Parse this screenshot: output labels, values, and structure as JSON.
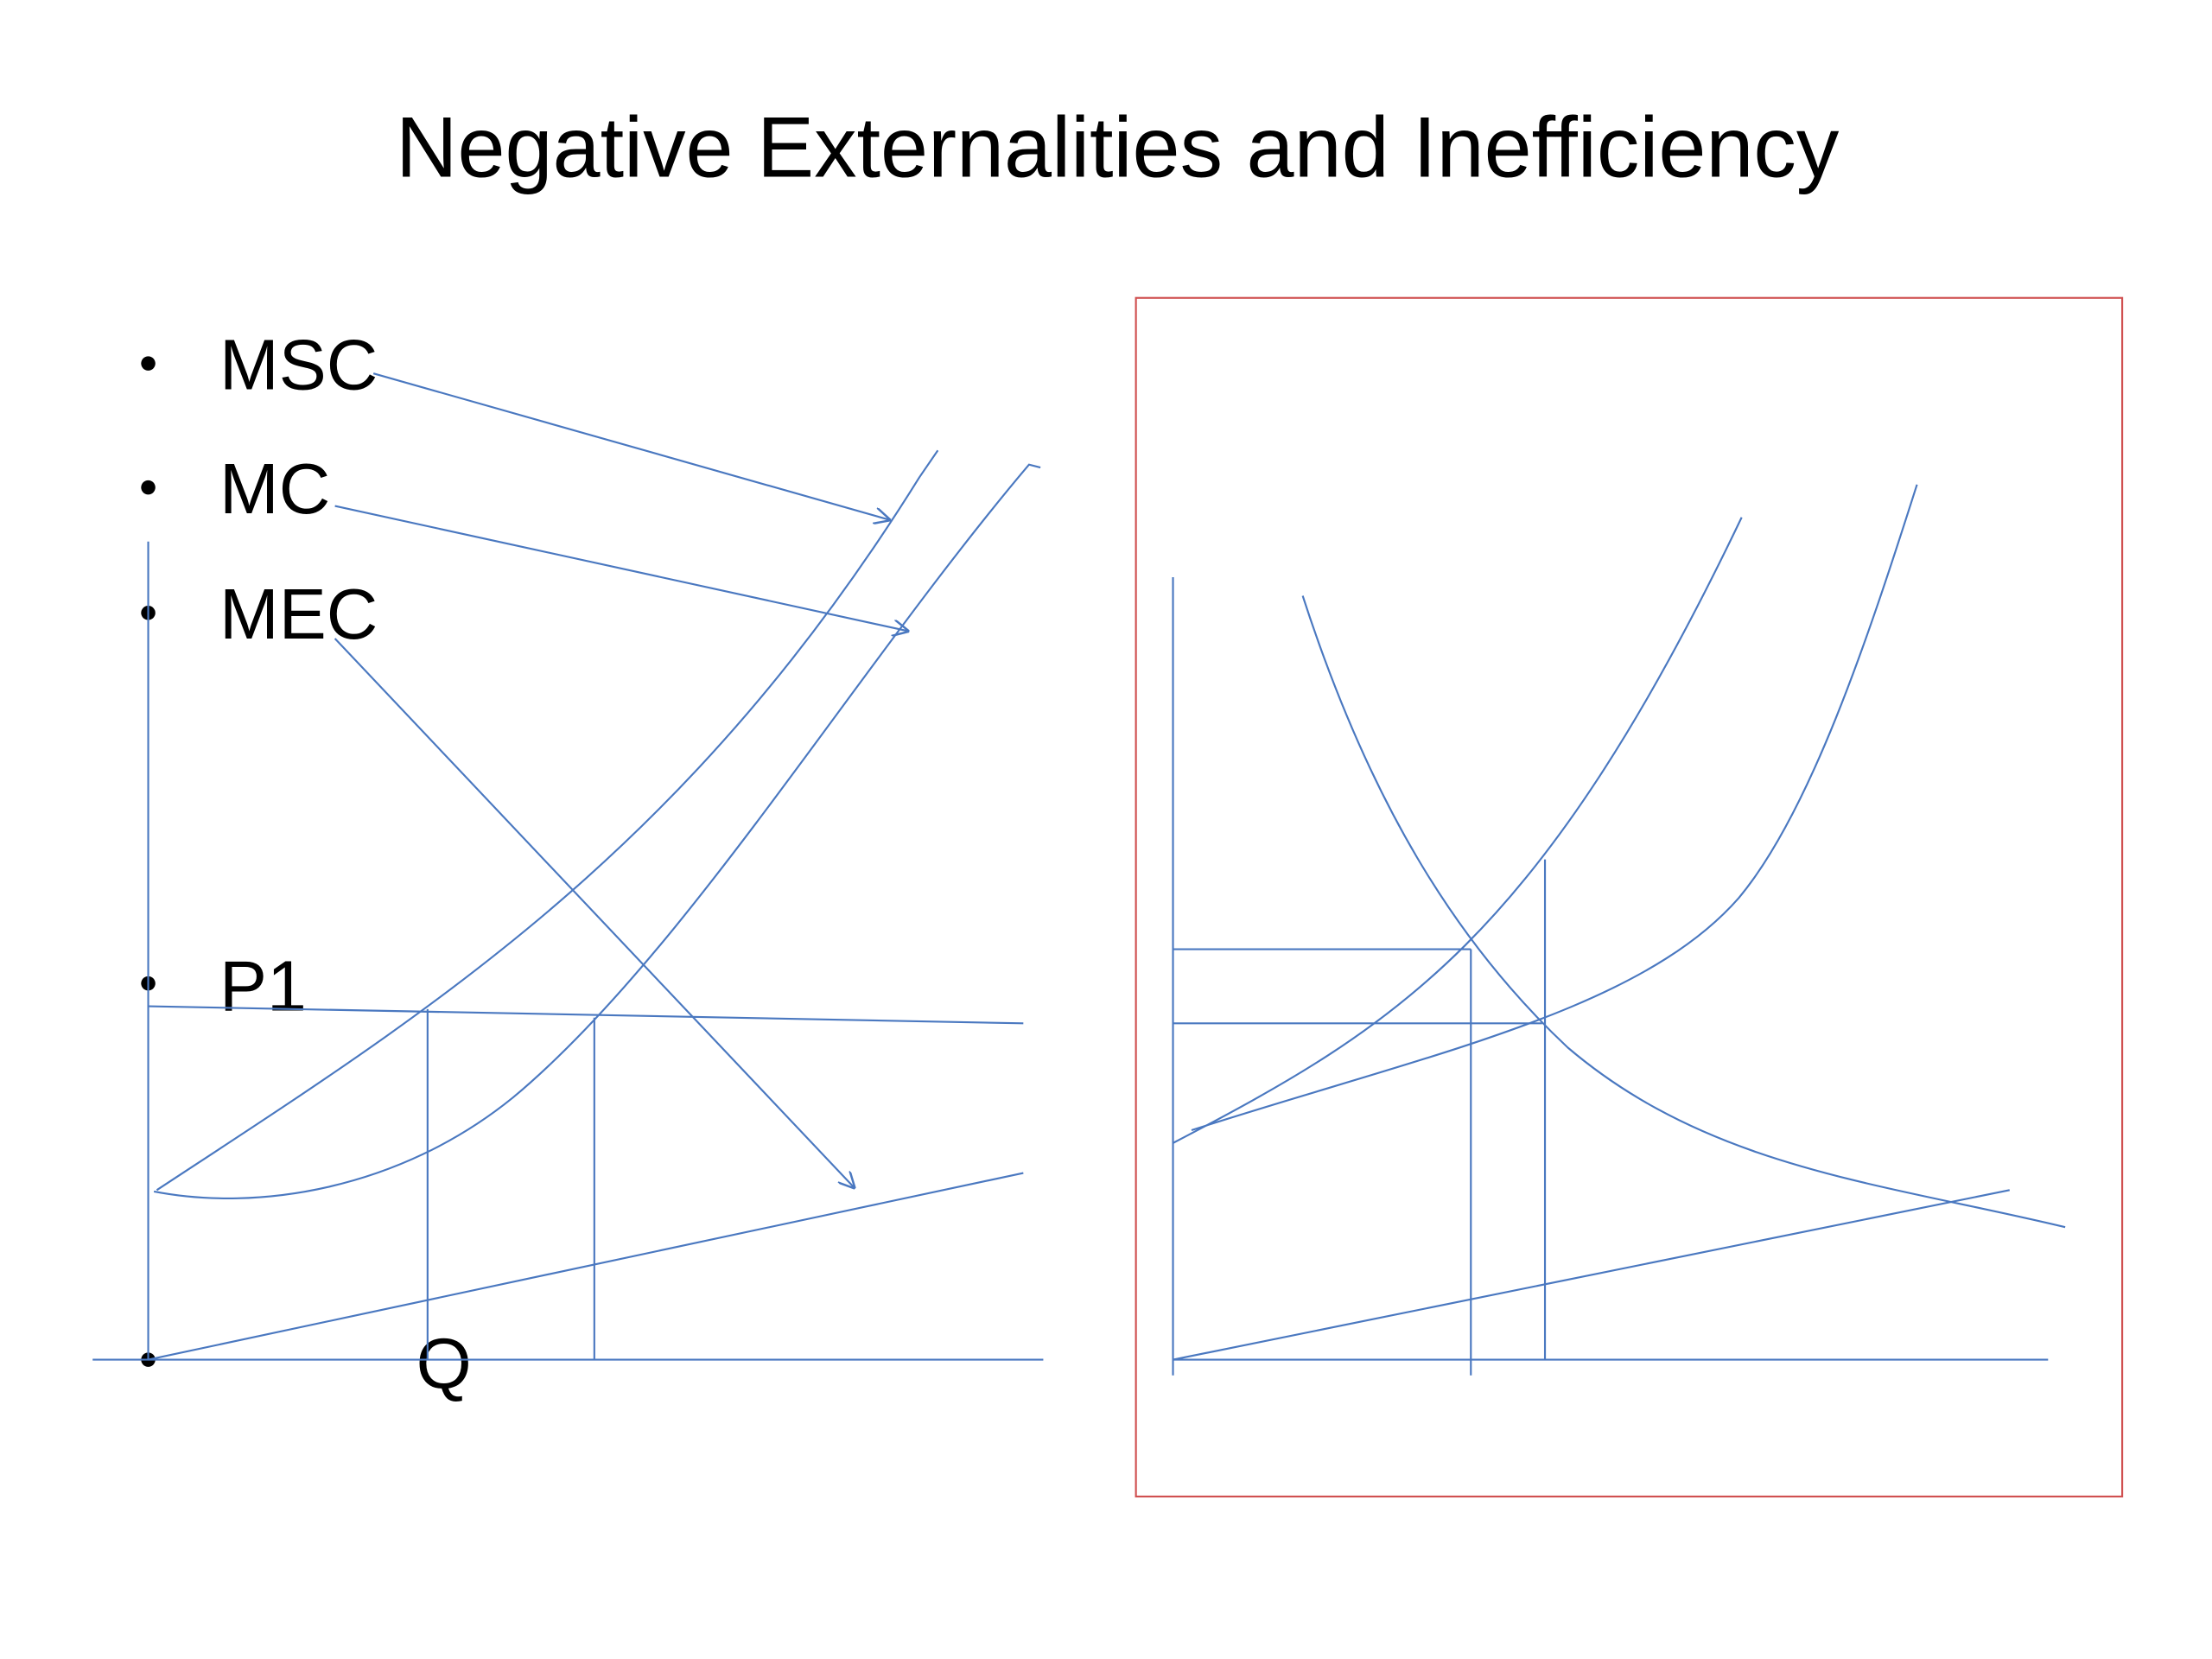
{
  "header": {
    "title": "Negative Externalities and Inefficiency"
  },
  "bullets": [
    "MSC",
    "MC",
    "MEC",
    "P1",
    "Q"
  ]
}
